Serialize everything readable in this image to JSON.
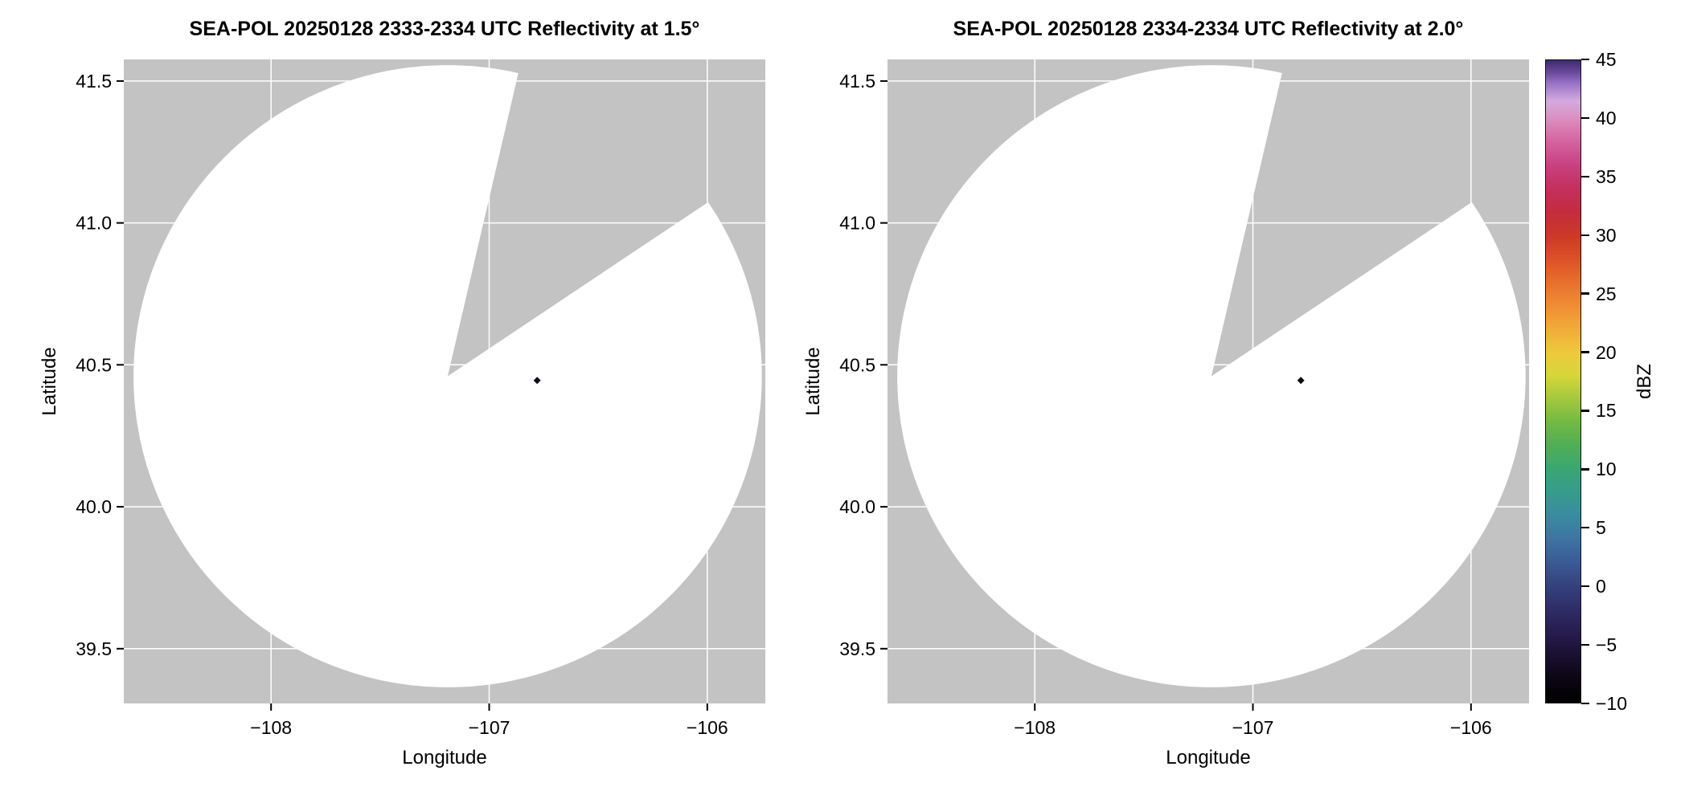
{
  "figure": {
    "background": "#ffffff",
    "panel_bg": "#c3c3c3",
    "grid_color": "#ffffff",
    "tick_color": "#000000",
    "text_color": "#000000",
    "echo_color": "#0c0c16"
  },
  "chart_data": [
    {
      "type": "radar_ppi",
      "title": "SEA-POL 20250128 2333-2334 UTC Reflectivity at 1.5°",
      "xlabel": "Longitude",
      "ylabel": "Latitude",
      "xlim": [
        -108.675,
        -105.734
      ],
      "ylim": [
        39.307,
        41.576
      ],
      "xticks": [
        -108,
        -107,
        -106
      ],
      "xtick_labels": [
        "−108",
        "−107",
        "−106"
      ],
      "yticks": [
        39.5,
        40.0,
        40.5,
        41.0,
        41.5
      ],
      "ytick_labels": [
        "39.5",
        "40.0",
        "40.5",
        "41.0",
        "41.5"
      ],
      "grid": true,
      "radar_center": {
        "lon": -107.19,
        "lat": 40.46
      },
      "range_km": 122,
      "missing_sector_azimuth_deg": [
        13,
        56
      ],
      "echo_points": [
        {
          "lon": -106.78,
          "lat": 40.445,
          "dbz": -8
        }
      ]
    },
    {
      "type": "radar_ppi",
      "title": "SEA-POL 20250128 2334-2334 UTC Reflectivity at 2.0°",
      "xlabel": "Longitude",
      "ylabel": "Latitude",
      "xlim": [
        -108.675,
        -105.734
      ],
      "ylim": [
        39.307,
        41.576
      ],
      "xticks": [
        -108,
        -107,
        -106
      ],
      "xtick_labels": [
        "−108",
        "−107",
        "−106"
      ],
      "yticks": [
        39.5,
        40.0,
        40.5,
        41.0,
        41.5
      ],
      "ytick_labels": [
        "39.5",
        "40.0",
        "40.5",
        "41.0",
        "41.5"
      ],
      "grid": true,
      "radar_center": {
        "lon": -107.19,
        "lat": 40.46
      },
      "range_km": 122,
      "missing_sector_azimuth_deg": [
        13,
        56
      ],
      "echo_points": [
        {
          "lon": -106.78,
          "lat": 40.445,
          "dbz": -8
        }
      ]
    }
  ],
  "colorbar": {
    "label": "dBZ",
    "min": -10,
    "max": 45,
    "tick_values": [
      -10,
      -5,
      0,
      5,
      10,
      15,
      20,
      25,
      30,
      35,
      40,
      45
    ],
    "tick_labels": [
      "−10",
      "−5",
      "0",
      "5",
      "10",
      "15",
      "20",
      "25",
      "30",
      "35",
      "40",
      "45"
    ],
    "stops": [
      {
        "value": -10,
        "color": "#000000"
      },
      {
        "value": -8,
        "color": "#0b0612"
      },
      {
        "value": -6,
        "color": "#1a1030"
      },
      {
        "value": -4,
        "color": "#271c4e"
      },
      {
        "value": -2,
        "color": "#2f2d68"
      },
      {
        "value": 0,
        "color": "#35417e"
      },
      {
        "value": 2,
        "color": "#3a5a96"
      },
      {
        "value": 4,
        "color": "#3d74a4"
      },
      {
        "value": 6,
        "color": "#3a8ba0"
      },
      {
        "value": 8,
        "color": "#379b8c"
      },
      {
        "value": 10,
        "color": "#3aa673"
      },
      {
        "value": 12,
        "color": "#4fae55"
      },
      {
        "value": 14,
        "color": "#72b945"
      },
      {
        "value": 16,
        "color": "#a3c83e"
      },
      {
        "value": 18,
        "color": "#d6d63a"
      },
      {
        "value": 20,
        "color": "#eec93c"
      },
      {
        "value": 22,
        "color": "#f0ab39"
      },
      {
        "value": 24,
        "color": "#ef8d33"
      },
      {
        "value": 26,
        "color": "#e76f2c"
      },
      {
        "value": 28,
        "color": "#dc5128"
      },
      {
        "value": 30,
        "color": "#cd3827"
      },
      {
        "value": 32,
        "color": "#c42c3d"
      },
      {
        "value": 34,
        "color": "#c42f5e"
      },
      {
        "value": 36,
        "color": "#c94180"
      },
      {
        "value": 38,
        "color": "#d4629f"
      },
      {
        "value": 40,
        "color": "#dc8fc0"
      },
      {
        "value": 41.5,
        "color": "#d4aade"
      },
      {
        "value": 43,
        "color": "#9a74c6"
      },
      {
        "value": 44,
        "color": "#68479c"
      },
      {
        "value": 45,
        "color": "#3c2a6e"
      }
    ]
  }
}
